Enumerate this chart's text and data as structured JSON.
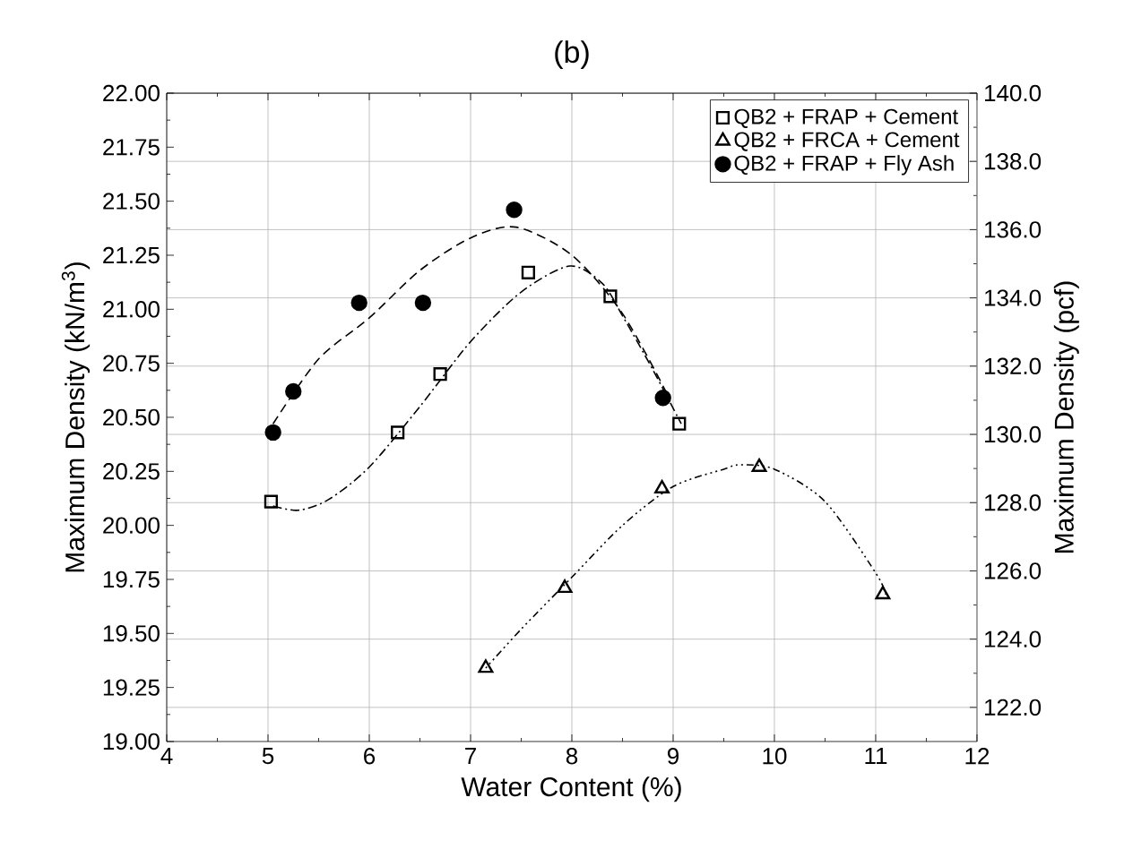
{
  "chart_data": {
    "type": "scatter",
    "title": "(b)",
    "xlabel": "Water Content (%)",
    "ylabel": "Maximum Density (kN/m$^{3}$)",
    "y2label": "Maximum Density (pcf)",
    "xlim": [
      4,
      12
    ],
    "xticks": [
      4,
      5,
      6,
      7,
      8,
      9,
      10,
      11,
      12
    ],
    "ylim": [
      19.0,
      22.0
    ],
    "yticks": [
      {
        "value": 19.0,
        "label": "19.00"
      },
      {
        "value": 19.25,
        "label": "19.25"
      },
      {
        "value": 19.5,
        "label": "19.50"
      },
      {
        "value": 19.75,
        "label": "19.75"
      },
      {
        "value": 20.0,
        "label": "20.00"
      },
      {
        "value": 20.25,
        "label": "20.25"
      },
      {
        "value": 20.5,
        "label": "20.50"
      },
      {
        "value": 20.75,
        "label": "20.75"
      },
      {
        "value": 21.0,
        "label": "21.00"
      },
      {
        "value": 21.25,
        "label": "21.25"
      },
      {
        "value": 21.5,
        "label": "21.50"
      },
      {
        "value": 21.75,
        "label": "21.75"
      },
      {
        "value": 22.0,
        "label": "22.00"
      }
    ],
    "y2lim": [
      121.0,
      140.0
    ],
    "y2ticks": [
      {
        "value": 122,
        "label": "122.0"
      },
      {
        "value": 124,
        "label": "124.0"
      },
      {
        "value": 126,
        "label": "126.0"
      },
      {
        "value": 128,
        "label": "128.0"
      },
      {
        "value": 130,
        "label": "130.0"
      },
      {
        "value": 132,
        "label": "132.0"
      },
      {
        "value": 134,
        "label": "134.0"
      },
      {
        "value": 136,
        "label": "136.0"
      },
      {
        "value": 138,
        "label": "138.0"
      },
      {
        "value": 140,
        "label": "140.0"
      }
    ],
    "grid": true,
    "legend": "top right",
    "series": [
      {
        "name": "QB2 + FRAP + Cement",
        "marker": "square",
        "color": "#000000",
        "x": [
          5.03,
          6.28,
          6.7,
          7.57,
          8.38,
          9.06
        ],
        "values": [
          20.11,
          20.43,
          20.7,
          21.17,
          21.06,
          20.47
        ]
      },
      {
        "name": "QB2 + FRCA + Cement",
        "marker": "triangle",
        "color": "#000000",
        "x": [
          7.15,
          7.93,
          8.89,
          9.85,
          11.07
        ],
        "values": [
          19.34,
          19.71,
          20.17,
          20.27,
          19.68
        ]
      },
      {
        "name": "QB2 + FRAP + Fly Ash",
        "marker": "circle",
        "color": "#000000",
        "x": [
          5.05,
          5.25,
          5.9,
          6.53,
          7.43,
          8.9
        ],
        "values": [
          20.43,
          20.62,
          21.03,
          21.03,
          21.46,
          20.59
        ]
      },
      {
        "type": "line",
        "line_style": "dashdot",
        "color": "#000000",
        "x": [
          5.05,
          5.3,
          5.6,
          6.0,
          6.5,
          7.0,
          7.5,
          7.98,
          8.3,
          8.5,
          8.8,
          9.08
        ],
        "values": [
          20.09,
          20.07,
          20.12,
          20.27,
          20.55,
          20.85,
          21.08,
          21.2,
          21.12,
          20.97,
          20.72,
          20.47
        ]
      },
      {
        "type": "line",
        "line_style": "dotted",
        "color": "#000000",
        "x": [
          7.15,
          7.5,
          8.0,
          8.5,
          9.0,
          9.5,
          9.66,
          10.0,
          10.5,
          11.0,
          11.1
        ],
        "values": [
          19.34,
          19.52,
          19.76,
          20.0,
          20.18,
          20.26,
          20.28,
          20.26,
          20.11,
          19.78,
          19.68
        ]
      },
      {
        "type": "line",
        "line_style": "dashed",
        "color": "#000000",
        "x": [
          5.05,
          5.5,
          6.0,
          6.5,
          7.0,
          7.45,
          8.0,
          8.5,
          8.95
        ],
        "values": [
          20.47,
          20.77,
          20.96,
          21.18,
          21.33,
          21.38,
          21.25,
          20.98,
          20.6
        ]
      }
    ]
  }
}
